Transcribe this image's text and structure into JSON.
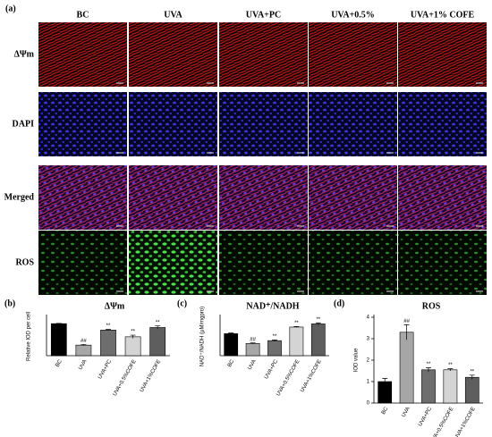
{
  "figure_label": "(a)",
  "columns": [
    "BC",
    "UVA",
    "UVA+PC",
    "UVA+0.5%",
    "UVA+1% COFE"
  ],
  "rows": [
    "ΔΨm",
    "DAPI",
    "Merged",
    "ROS"
  ],
  "chart_data": [
    {
      "type": "bar",
      "panel_label": "(b)",
      "title": "ΔΨm",
      "y_label": "Relative IOD per cell",
      "categories": [
        "BC",
        "UVA",
        "UVA+PC",
        "UVA+0.5%COFE",
        "UVA+1%COFE"
      ],
      "values": [
        1.0,
        0.33,
        0.8,
        0.59,
        0.88
      ],
      "errors": [
        0.01,
        0.02,
        0.02,
        0.05,
        0.05
      ],
      "annotations": [
        null,
        "##",
        "**",
        "**",
        "**"
      ],
      "colors": [
        "#000000",
        "#a6a6a6",
        "#6e6e6e",
        "#d4d4d4",
        "#5e5e5e"
      ],
      "ylim": [
        0,
        1.2
      ]
    },
    {
      "type": "bar",
      "panel_label": "(c)",
      "title": "NAD⁺/NADH",
      "y_label": "NAD⁺/NADH (μM/mgpro)",
      "categories": [
        "BC",
        "UVA",
        "UVA+PC",
        "UVA+0.5%COFE",
        "UVA+1%COFE"
      ],
      "values": [
        63,
        35,
        43,
        82,
        91
      ],
      "errors": [
        2,
        1.5,
        2,
        1.5,
        3
      ],
      "annotations": [
        null,
        "##",
        "**",
        "**",
        "**"
      ],
      "colors": [
        "#000000",
        "#a6a6a6",
        "#6e6e6e",
        "#d4d4d4",
        "#5e5e5e"
      ],
      "ylim": [
        0,
        110
      ]
    },
    {
      "type": "bar",
      "panel_label": "(d)",
      "title": "ROS",
      "y_label": "IOD value",
      "categories": [
        "BC",
        "UVA",
        "UVA+PC",
        "UVA+0.5%COFE",
        "UVA+1%COFE"
      ],
      "values": [
        1.0,
        3.3,
        1.55,
        1.55,
        1.2
      ],
      "errors": [
        0.15,
        0.35,
        0.1,
        0.05,
        0.1
      ],
      "annotations": [
        null,
        "##",
        "**",
        "**",
        "**"
      ],
      "colors": [
        "#000000",
        "#a6a6a6",
        "#6e6e6e",
        "#d4d4d4",
        "#5e5e5e"
      ],
      "ylim": [
        0,
        4
      ],
      "yticks": [
        0,
        1,
        2,
        3,
        4
      ]
    }
  ]
}
